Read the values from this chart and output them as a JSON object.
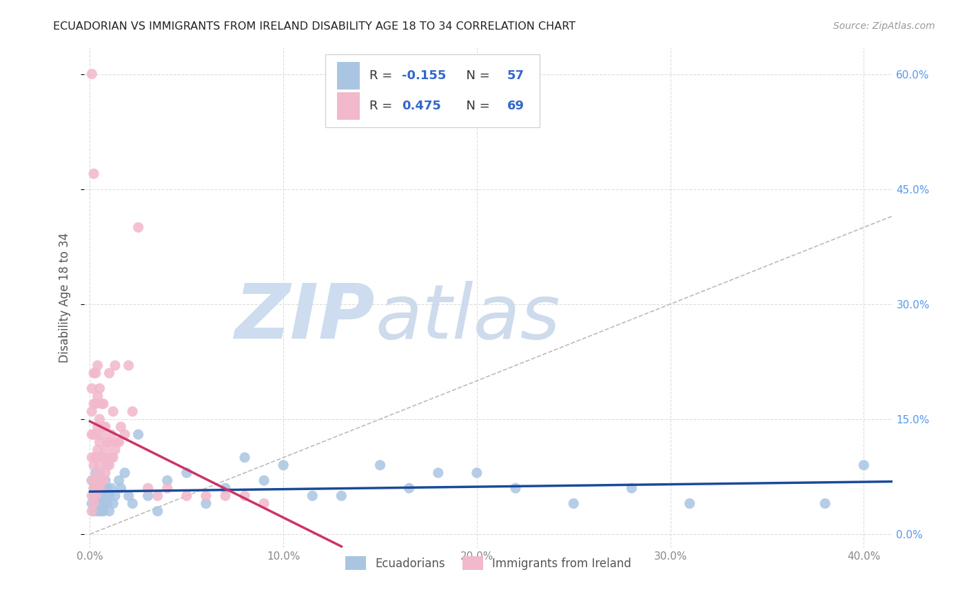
{
  "title": "ECUADORIAN VS IMMIGRANTS FROM IRELAND DISABILITY AGE 18 TO 34 CORRELATION CHART",
  "source": "Source: ZipAtlas.com",
  "ylabel": "Disability Age 18 to 34",
  "legend_label_blue": "Ecuadorians",
  "legend_label_pink": "Immigrants from Ireland",
  "xlim": [
    -0.003,
    0.415
  ],
  "ylim": [
    -0.018,
    0.635
  ],
  "xlabel_tick_vals": [
    0.0,
    0.1,
    0.2,
    0.3,
    0.4
  ],
  "ylabel_tick_vals": [
    0.0,
    0.15,
    0.3,
    0.45,
    0.6
  ],
  "blue_R": -0.155,
  "blue_N": 57,
  "pink_R": 0.475,
  "pink_N": 69,
  "blue_color": "#aac5e2",
  "pink_color": "#f2b8cb",
  "blue_line_color": "#1a4a99",
  "pink_line_color": "#cc3366",
  "diag_line_color": "#bbbbbb",
  "watermark_zip": "ZIP",
  "watermark_atlas": "atlas",
  "watermark_color": "#cddcef",
  "background_color": "#ffffff",
  "grid_color": "#dddddd",
  "tick_color_x": "#888888",
  "tick_color_y": "#5599ee",
  "blue_scatter_x": [
    0.001,
    0.001,
    0.002,
    0.002,
    0.002,
    0.003,
    0.003,
    0.003,
    0.004,
    0.004,
    0.004,
    0.005,
    0.005,
    0.005,
    0.005,
    0.006,
    0.006,
    0.006,
    0.007,
    0.007,
    0.007,
    0.008,
    0.008,
    0.009,
    0.009,
    0.01,
    0.01,
    0.011,
    0.012,
    0.013,
    0.015,
    0.016,
    0.018,
    0.02,
    0.022,
    0.025,
    0.03,
    0.035,
    0.04,
    0.05,
    0.06,
    0.07,
    0.08,
    0.09,
    0.1,
    0.115,
    0.13,
    0.15,
    0.165,
    0.18,
    0.2,
    0.22,
    0.25,
    0.28,
    0.31,
    0.38,
    0.4
  ],
  "blue_scatter_y": [
    0.04,
    0.07,
    0.05,
    0.03,
    0.06,
    0.04,
    0.06,
    0.08,
    0.03,
    0.05,
    0.07,
    0.04,
    0.06,
    0.03,
    0.08,
    0.05,
    0.03,
    0.07,
    0.04,
    0.06,
    0.03,
    0.05,
    0.07,
    0.04,
    0.06,
    0.05,
    0.03,
    0.06,
    0.04,
    0.05,
    0.07,
    0.06,
    0.08,
    0.05,
    0.04,
    0.13,
    0.05,
    0.03,
    0.07,
    0.08,
    0.04,
    0.06,
    0.1,
    0.07,
    0.09,
    0.05,
    0.05,
    0.09,
    0.06,
    0.08,
    0.08,
    0.06,
    0.04,
    0.06,
    0.04,
    0.04,
    0.09
  ],
  "pink_scatter_x": [
    0.001,
    0.001,
    0.001,
    0.001,
    0.001,
    0.001,
    0.001,
    0.001,
    0.002,
    0.002,
    0.002,
    0.002,
    0.002,
    0.002,
    0.002,
    0.003,
    0.003,
    0.003,
    0.003,
    0.003,
    0.003,
    0.004,
    0.004,
    0.004,
    0.004,
    0.004,
    0.004,
    0.005,
    0.005,
    0.005,
    0.005,
    0.005,
    0.006,
    0.006,
    0.006,
    0.006,
    0.007,
    0.007,
    0.007,
    0.007,
    0.008,
    0.008,
    0.008,
    0.009,
    0.009,
    0.01,
    0.01,
    0.01,
    0.011,
    0.011,
    0.012,
    0.012,
    0.013,
    0.013,
    0.014,
    0.015,
    0.016,
    0.018,
    0.02,
    0.022,
    0.025,
    0.03,
    0.035,
    0.04,
    0.05,
    0.06,
    0.07,
    0.08,
    0.09
  ],
  "pink_scatter_y": [
    0.03,
    0.05,
    0.07,
    0.1,
    0.13,
    0.16,
    0.19,
    0.6,
    0.04,
    0.06,
    0.09,
    0.13,
    0.17,
    0.21,
    0.47,
    0.05,
    0.07,
    0.1,
    0.13,
    0.17,
    0.21,
    0.06,
    0.08,
    0.11,
    0.14,
    0.18,
    0.22,
    0.06,
    0.09,
    0.12,
    0.15,
    0.19,
    0.07,
    0.1,
    0.13,
    0.17,
    0.07,
    0.1,
    0.14,
    0.17,
    0.08,
    0.11,
    0.14,
    0.09,
    0.12,
    0.09,
    0.12,
    0.21,
    0.1,
    0.13,
    0.1,
    0.16,
    0.11,
    0.22,
    0.12,
    0.12,
    0.14,
    0.13,
    0.22,
    0.16,
    0.4,
    0.06,
    0.05,
    0.06,
    0.05,
    0.05,
    0.05,
    0.05,
    0.04
  ]
}
